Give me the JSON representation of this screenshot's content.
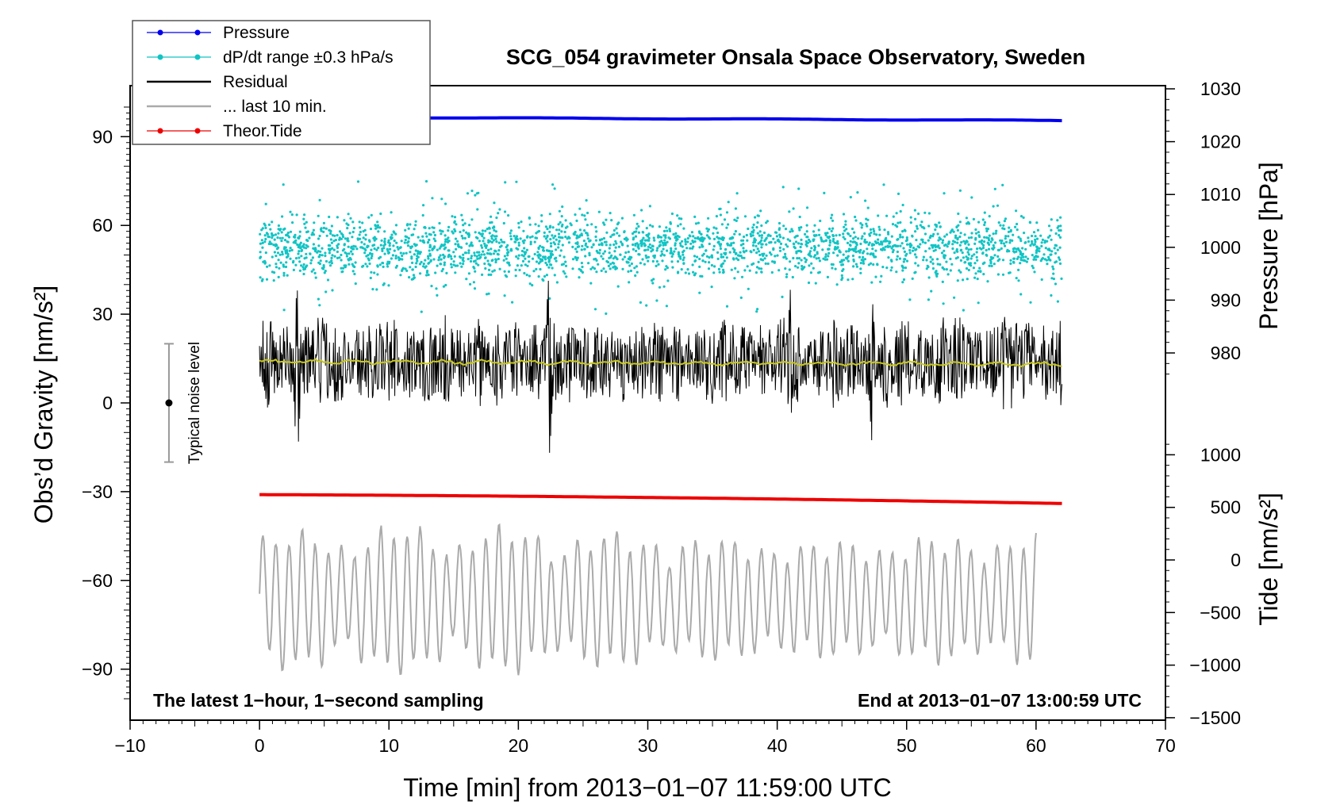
{
  "chart_data": {
    "type": "line",
    "title": "SCG_054 gravimeter Onsala Space Observatory, Sweden",
    "xlabel": "Time [min] from 2013−01−07 11:59:00 UTC",
    "ylabel_left": "Obs’d Gravity [nm/s²]",
    "ylabel_right_pressure": "Pressure [hPa]",
    "ylabel_right_tide": "Tide [nm/s²]",
    "xlim": [
      -10,
      70
    ],
    "ylim": [
      -100,
      100
    ],
    "pressure_axis_range": [
      975,
      1030
    ],
    "tide_axis_range": [
      -1500,
      1200
    ],
    "x_ticks": [
      -10,
      0,
      10,
      20,
      30,
      40,
      50,
      60,
      70
    ],
    "x_tick_labels": [
      "−10",
      "0",
      "10",
      "20",
      "30",
      "40",
      "50",
      "60",
      "70"
    ],
    "y_ticks": [
      90,
      60,
      30,
      0,
      -30,
      -60,
      -90
    ],
    "y_tick_labels": [
      "90",
      "60",
      "30",
      "0",
      "−30",
      "−60",
      "−90"
    ],
    "pressure_ticks": [
      1030,
      1020,
      1010,
      1000,
      990,
      980
    ],
    "pressure_tick_labels": [
      "1030",
      "1020",
      "1010",
      "1000",
      "990",
      "980"
    ],
    "tide_ticks": [
      1000,
      500,
      0,
      -500,
      -1000,
      -1500
    ],
    "tide_tick_labels": [
      "1000",
      "500",
      "0",
      "−500",
      "−1000",
      "−1500"
    ],
    "legend": [
      {
        "label": "Pressure",
        "color": "#0000ee",
        "style": "line-dot"
      },
      {
        "label": "dP/dt range ±0.3 hPa/s",
        "color": "#11c4c4",
        "style": "line-dot"
      },
      {
        "label": "Residual",
        "color": "#000000",
        "style": "line"
      },
      {
        "label": "... last 10 min.",
        "color": "#aaaaaa",
        "style": "line"
      },
      {
        "label": "Theor.Tide",
        "color": "#ee0000",
        "style": "line-dot"
      }
    ],
    "annotations": {
      "bottom_left": "The latest 1−hour, 1−second sampling",
      "bottom_right": "End at 2013−01−07 13:00:59 UTC",
      "noise_bar_label": "Typical noise level"
    },
    "noise_bar": {
      "x": -7,
      "center": 0,
      "half_range": 20
    },
    "series": [
      {
        "name": "Pressure",
        "color": "#0000ee",
        "x_range": [
          0,
          62
        ],
        "start": 1024.7,
        "end": 1024.0,
        "unit": "hPa"
      },
      {
        "name": "dP/dt range",
        "color": "#11c4c4",
        "x_range": [
          0,
          62
        ],
        "center": 1000,
        "spread": 6,
        "unit": "hPa"
      },
      {
        "name": "Residual",
        "color": "#000000",
        "x_range": [
          0,
          62
        ],
        "center": 14,
        "typical_amplitude": 12,
        "spikes": [
          {
            "x": 2.9,
            "min": -22,
            "max": 42
          },
          {
            "x": 22.4,
            "min": -21,
            "max": 48
          },
          {
            "x": 41.0,
            "min": -10,
            "max": 40
          },
          {
            "x": 47.3,
            "min": -14,
            "max": 40
          },
          {
            "x": 57.5,
            "min": -6,
            "max": 34
          }
        ]
      },
      {
        "name": "Residual mean",
        "color": "#c8c81e",
        "x_range": [
          0,
          62
        ],
        "value": 14
      },
      {
        "name": "Theor.Tide",
        "color": "#ee0000",
        "x_range": [
          0,
          62
        ],
        "start": -31,
        "end": -34
      },
      {
        "name": "... last 10 min.",
        "color": "#aaaaaa",
        "x_range": [
          0,
          60
        ],
        "center": -380,
        "amplitude_range": [
          150,
          650
        ],
        "unit": "nm/s²"
      }
    ]
  }
}
